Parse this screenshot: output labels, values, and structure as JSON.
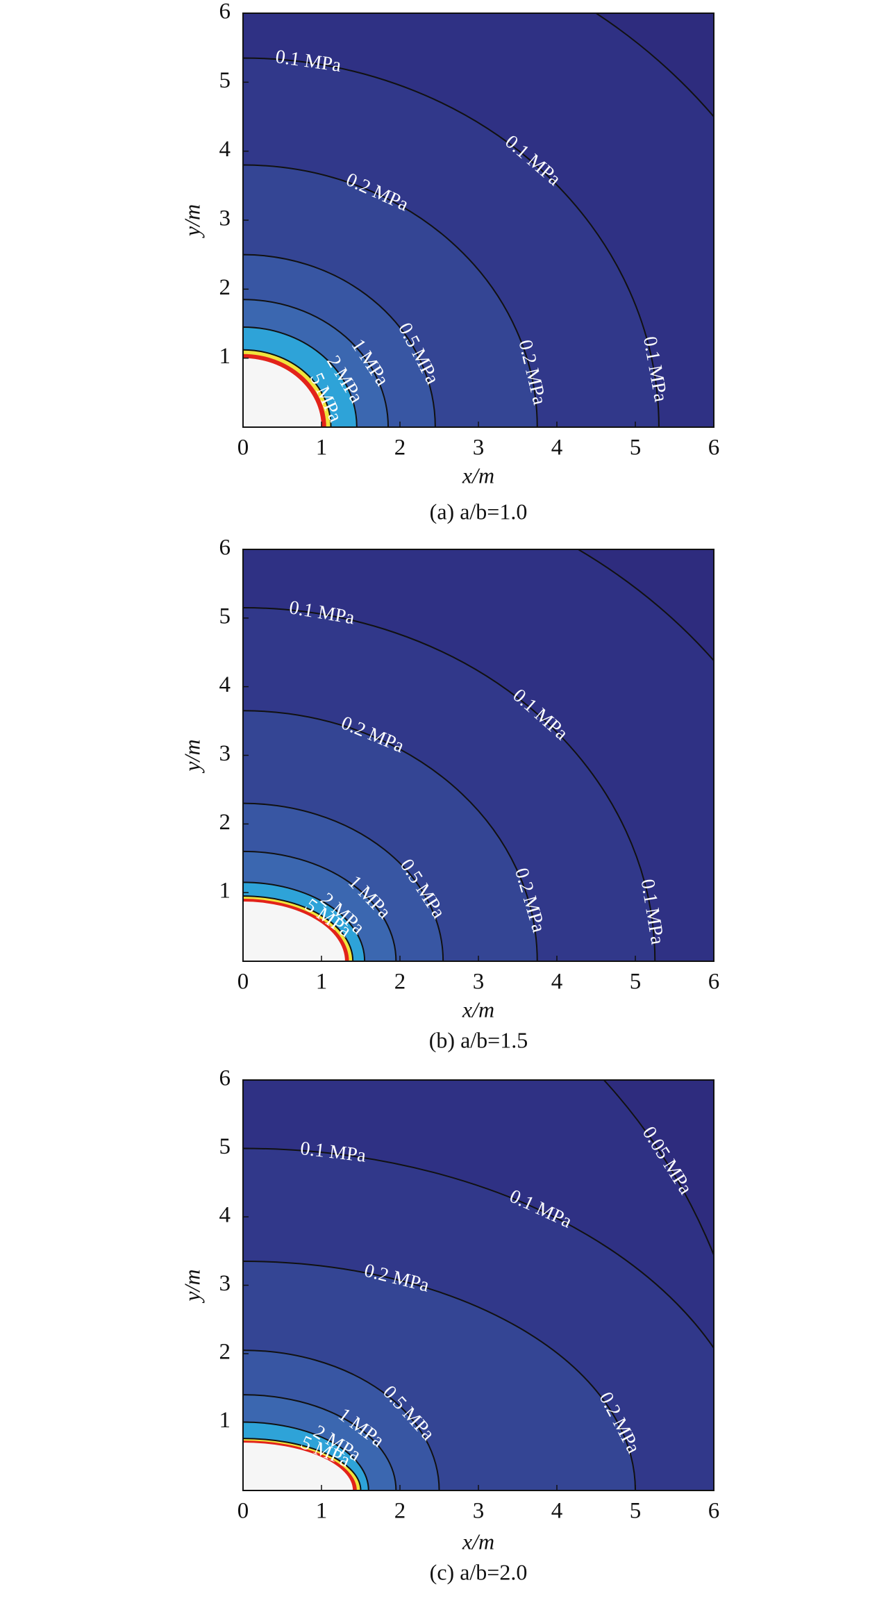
{
  "chart_data": [
    {
      "type": "contour",
      "title": "(a) a/b=1.0",
      "x_label": "x/m",
      "y_label": "y/m",
      "xlim": [
        0,
        6
      ],
      "ylim": [
        0,
        6
      ],
      "xticks": [
        0,
        1,
        2,
        3,
        4,
        5,
        6
      ],
      "yticks": [
        1,
        2,
        3,
        4,
        5,
        6
      ],
      "background": "#2e2c7e",
      "contours": [
        {
          "rx": 7.5,
          "ry": 7.5,
          "fill": "#2f3184",
          "stroke": "#111111"
        },
        {
          "label": "0.1 MPa",
          "rx": 5.3,
          "ry": 5.35,
          "fill": "#31388a",
          "stroke": "#111111"
        },
        {
          "label": "0.2 MPa",
          "rx": 3.75,
          "ry": 3.8,
          "fill": "#344594",
          "stroke": "#111111"
        },
        {
          "label": "0.5 MPa",
          "rx": 2.45,
          "ry": 2.5,
          "fill": "#3856a3",
          "stroke": "#111111"
        },
        {
          "label": "1 MPa",
          "rx": 1.85,
          "ry": 1.85,
          "fill": "#3b67b0",
          "stroke": "#111111"
        },
        {
          "label": "2 MPa",
          "rx": 1.45,
          "ry": 1.45,
          "fill": "#2ea3d8",
          "stroke": "#111111"
        },
        {
          "label": "5 MPa",
          "rx": 1.12,
          "ry": 1.12,
          "fill": "#f0e43c",
          "stroke": "#111111"
        },
        {
          "rx": 1.06,
          "ry": 1.06,
          "fill": "#e2231a"
        },
        {
          "rx": 1.0,
          "ry": 1.0,
          "fill": "#f6f6f6"
        }
      ]
    },
    {
      "type": "contour",
      "title": "(b) a/b=1.5",
      "x_label": "x/m",
      "y_label": "y/m",
      "xlim": [
        0,
        6
      ],
      "ylim": [
        0,
        6
      ],
      "xticks": [
        0,
        1,
        2,
        3,
        4,
        5,
        6
      ],
      "yticks": [
        1,
        2,
        3,
        4,
        5,
        6
      ],
      "background": "#2e2c7e",
      "contours": [
        {
          "rx": 7.5,
          "ry": 7.3,
          "fill": "#2f3184",
          "stroke": "#111111"
        },
        {
          "label": "0.1 MPa",
          "rx": 5.25,
          "ry": 5.15,
          "fill": "#31388a",
          "stroke": "#111111"
        },
        {
          "label": "0.2 MPa",
          "rx": 3.75,
          "ry": 3.65,
          "fill": "#344594",
          "stroke": "#111111"
        },
        {
          "label": "0.5 MPa",
          "rx": 2.55,
          "ry": 2.3,
          "fill": "#3856a3",
          "stroke": "#111111"
        },
        {
          "label": "1 MPa",
          "rx": 1.95,
          "ry": 1.6,
          "fill": "#3b67b0",
          "stroke": "#111111"
        },
        {
          "label": "2 MPa",
          "rx": 1.55,
          "ry": 1.15,
          "fill": "#2ea3d8",
          "stroke": "#111111"
        },
        {
          "label": "5 MPa",
          "rx": 1.4,
          "ry": 0.95,
          "fill": "#f0e43c",
          "stroke": "#111111"
        },
        {
          "rx": 1.35,
          "ry": 0.91,
          "fill": "#e2231a"
        },
        {
          "rx": 1.3,
          "ry": 0.87,
          "fill": "#f6f6f6"
        }
      ]
    },
    {
      "type": "contour",
      "title": "(c) a/b=2.0",
      "x_label": "x/m",
      "y_label": "y/m",
      "xlim": [
        0,
        6
      ],
      "ylim": [
        0,
        6
      ],
      "xticks": [
        0,
        1,
        2,
        3,
        4,
        5,
        6
      ],
      "yticks": [
        1,
        2,
        3,
        4,
        5,
        6
      ],
      "background": "#2e2c7e",
      "contours": [
        {
          "label": "0.05 MPa",
          "rx": 6.58,
          "ry": 8.39,
          "fill": "#2f3184",
          "stroke": "#111111"
        },
        {
          "label": "0.1 MPa",
          "rx": 6.6,
          "ry": 5.0,
          "fill": "#31388a",
          "stroke": "#111111"
        },
        {
          "label": "0.2 MPa",
          "rx": 5.0,
          "ry": 3.35,
          "fill": "#344594",
          "stroke": "#111111"
        },
        {
          "label": "0.5 MPa",
          "rx": 2.5,
          "ry": 2.05,
          "fill": "#3856a3",
          "stroke": "#111111"
        },
        {
          "label": "1 MPa",
          "rx": 1.95,
          "ry": 1.4,
          "fill": "#3b67b0",
          "stroke": "#111111"
        },
        {
          "label": "2 MPa",
          "rx": 1.6,
          "ry": 1.0,
          "fill": "#2ea3d8",
          "stroke": "#111111"
        },
        {
          "label": "5 MPa",
          "rx": 1.5,
          "ry": 0.76,
          "fill": "#f0e43c",
          "stroke": "#111111"
        },
        {
          "rx": 1.45,
          "ry": 0.73,
          "fill": "#e2231a"
        },
        {
          "rx": 1.4,
          "ry": 0.7,
          "fill": "#f6f6f6"
        }
      ]
    }
  ]
}
